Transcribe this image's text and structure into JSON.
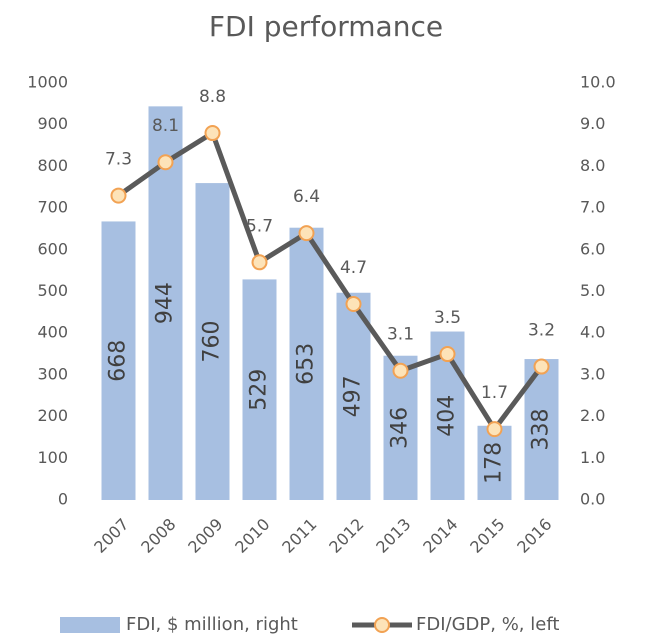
{
  "chart_data": {
    "type": "bar-line",
    "title": "FDI performance",
    "categories": [
      "2007",
      "2008",
      "2009",
      "2010",
      "2011",
      "2012",
      "2013",
      "2014",
      "2015",
      "2016"
    ],
    "series": [
      {
        "name": "FDI, $ million, right",
        "color": "#a7bfe1",
        "type": "bar",
        "values": [
          668,
          944,
          760,
          529,
          653,
          497,
          346,
          404,
          178,
          338
        ]
      },
      {
        "name": "FDI/GDP, %, left",
        "color": "#5a5a5a",
        "marker_color": "#fde3b8",
        "marker_edge": "#f2a253",
        "type": "line",
        "axis": "y2",
        "values": [
          7.3,
          8.1,
          8.8,
          5.7,
          6.4,
          4.7,
          3.1,
          3.5,
          1.7,
          3.2
        ]
      }
    ],
    "ylim": [
      0,
      1000
    ],
    "yticks": [
      0,
      100,
      200,
      300,
      400,
      500,
      600,
      700,
      800,
      900,
      1000
    ],
    "y2lim": [
      0,
      10
    ],
    "y2ticks": [
      {
        "value": 0,
        "label": "0.0"
      },
      {
        "value": 1,
        "label": "1.0"
      },
      {
        "value": 2,
        "label": "2.0"
      },
      {
        "value": 3,
        "label": "3.0"
      },
      {
        "value": 4,
        "label": "4.0"
      },
      {
        "value": 5,
        "label": "5.0"
      },
      {
        "value": 6,
        "label": "6.0"
      },
      {
        "value": 7,
        "label": "7.0"
      },
      {
        "value": 8,
        "label": "8.0"
      },
      {
        "value": 9,
        "label": "9.0"
      },
      {
        "value": 10,
        "label": "10.0"
      }
    ],
    "legend": "bottom"
  }
}
